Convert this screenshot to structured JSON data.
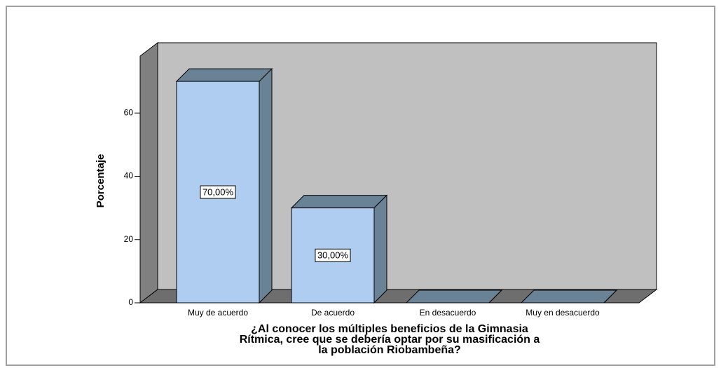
{
  "chart_data": {
    "type": "bar3d",
    "categories": [
      "Muy de acuerdo",
      "De acuerdo",
      "En desacuerdo",
      "Muy en desacuerdo"
    ],
    "values": [
      70,
      30,
      0,
      0
    ],
    "value_labels": [
      "70,00%",
      "30,00%",
      null,
      null
    ],
    "color": "#aecdf0",
    "y_label": "Porcentaje",
    "x_label": [
      "¿Al conocer los múltiples beneficios de la Gimnasia",
      "Rítmica, cree que se debería optar por su masificación a",
      "la población Riobambeña?"
    ],
    "ylim": [
      0,
      78
    ],
    "yticks": [
      0,
      20,
      40,
      60
    ]
  }
}
